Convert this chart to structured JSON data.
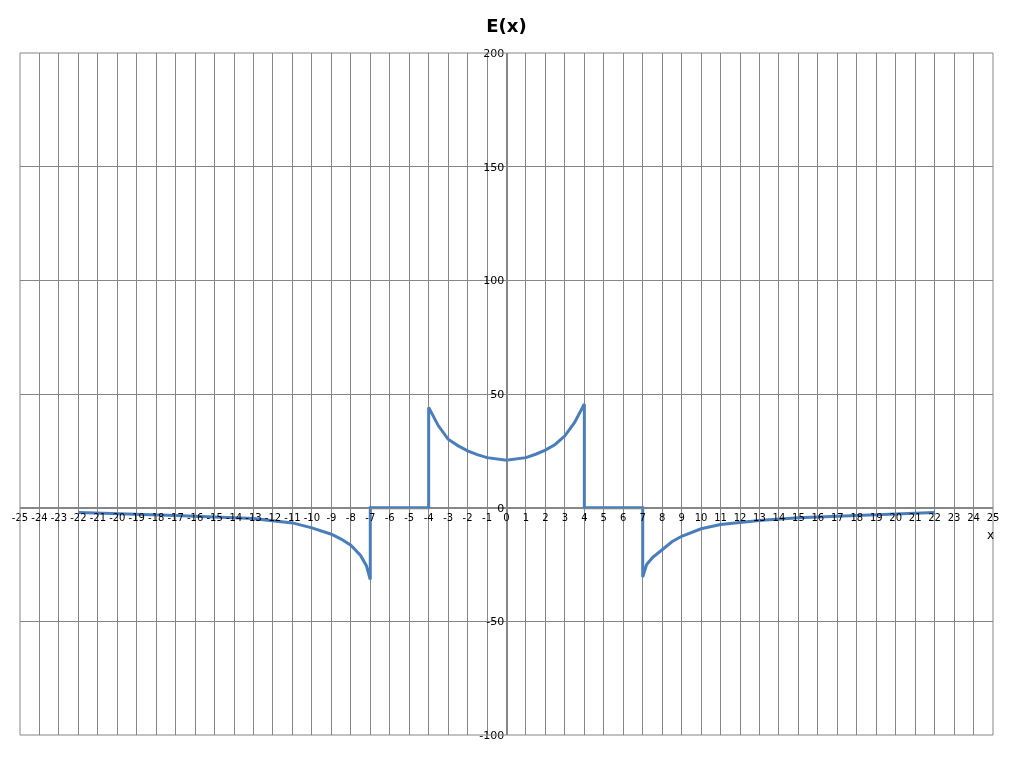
{
  "chart_data": {
    "type": "line",
    "title": "E(x)",
    "xlabel": "x",
    "x": [
      -22,
      -17,
      -13,
      -11,
      -10,
      -9,
      -8.5,
      -8,
      -7.5,
      -7.2,
      -7,
      -7,
      -4,
      -4,
      -3.5,
      -3,
      -2.5,
      -2,
      -1.5,
      -1,
      0,
      1,
      1.5,
      2,
      2.5,
      3,
      3.5,
      4,
      4,
      7,
      7,
      7.2,
      7.5,
      8,
      8.5,
      9,
      10,
      11,
      13,
      15,
      18,
      22
    ],
    "series": [
      {
        "color": "#4a7ebb",
        "values": [
          -2.1,
          -3.4,
          -4.8,
          -6.7,
          -8.9,
          -11.7,
          -13.8,
          -16.5,
          -21,
          -25.5,
          -31.6,
          0,
          0,
          44.1,
          36,
          30.1,
          27.3,
          25,
          23.3,
          22,
          20.9,
          22,
          23.5,
          25.3,
          27.8,
          31.6,
          37.5,
          45.6,
          0,
          0,
          -30.5,
          -25,
          -22,
          -18.5,
          -15,
          -12.6,
          -9.3,
          -7.4,
          -5.6,
          -4.4,
          -3.4,
          -2.1
        ]
      }
    ],
    "xlim": [
      -25,
      25
    ],
    "xticks": [
      -25,
      -24,
      -23,
      -22,
      -21,
      -20,
      -19,
      -18,
      -17,
      -16,
      -15,
      -14,
      -13,
      -12,
      -11,
      -10,
      -9,
      -8,
      -7,
      -6,
      -5,
      -4,
      -3,
      -2,
      -1,
      0,
      1,
      2,
      3,
      4,
      5,
      6,
      7,
      8,
      9,
      10,
      11,
      12,
      13,
      14,
      15,
      16,
      17,
      18,
      19,
      20,
      21,
      22,
      23,
      24,
      25
    ],
    "ylim": [
      -100,
      200
    ],
    "yticks": [
      -100,
      -50,
      0,
      50,
      100,
      150,
      200
    ],
    "grid": true,
    "marker": "none",
    "line_style": "solid"
  }
}
